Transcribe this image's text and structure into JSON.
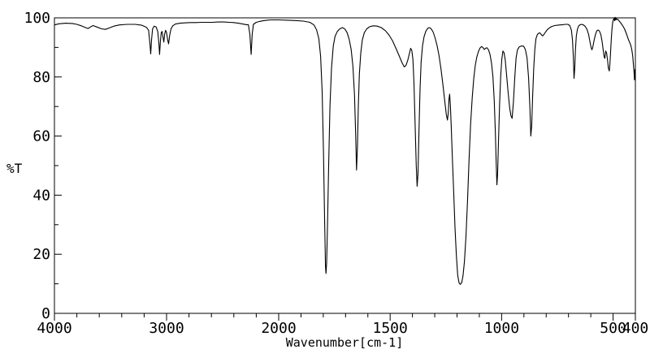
{
  "chart_data": {
    "type": "line",
    "title": "",
    "xlabel": "Wavenumber[cm-1]",
    "ylabel": "%T",
    "line_color": "#000000",
    "background_color": "#ffffff",
    "grid": "off",
    "x_axis": {
      "reversed": true,
      "max": 4000,
      "break": 2000,
      "min": 400,
      "major_ticks": [
        4000,
        3000,
        2000,
        1500,
        1000,
        500,
        400
      ],
      "minor_step_above_break": 200,
      "minor_step_below_break": 100
    },
    "y_axis": {
      "min": 0,
      "max": 100,
      "major_ticks": [
        0,
        20,
        40,
        60,
        80,
        100
      ],
      "minor_step": 10
    },
    "points": [
      [
        4000,
        97.6
      ],
      [
        3960,
        98.0
      ],
      [
        3900,
        98.2
      ],
      [
        3840,
        98.1
      ],
      [
        3800,
        97.8
      ],
      [
        3760,
        97.3
      ],
      [
        3730,
        96.8
      ],
      [
        3700,
        96.4
      ],
      [
        3680,
        96.9
      ],
      [
        3655,
        97.4
      ],
      [
        3620,
        96.9
      ],
      [
        3580,
        96.3
      ],
      [
        3545,
        96.1
      ],
      [
        3510,
        96.6
      ],
      [
        3470,
        97.2
      ],
      [
        3420,
        97.6
      ],
      [
        3350,
        97.8
      ],
      [
        3280,
        97.8
      ],
      [
        3220,
        97.5
      ],
      [
        3180,
        96.8
      ],
      [
        3160,
        95.8
      ],
      [
        3148,
        91.0
      ],
      [
        3141,
        87.8
      ],
      [
        3134,
        92.5
      ],
      [
        3125,
        96.3
      ],
      [
        3110,
        97.2
      ],
      [
        3093,
        96.9
      ],
      [
        3078,
        95.3
      ],
      [
        3069,
        91.5
      ],
      [
        3062,
        87.6
      ],
      [
        3055,
        92.0
      ],
      [
        3047,
        95.0
      ],
      [
        3040,
        95.4
      ],
      [
        3032,
        93.5
      ],
      [
        3025,
        91.8
      ],
      [
        3017,
        94.5
      ],
      [
        3009,
        95.8
      ],
      [
        3000,
        95.0
      ],
      [
        2990,
        92.5
      ],
      [
        2982,
        91.2
      ],
      [
        2972,
        94.2
      ],
      [
        2960,
        96.3
      ],
      [
        2945,
        97.3
      ],
      [
        2920,
        97.9
      ],
      [
        2880,
        98.2
      ],
      [
        2840,
        98.3
      ],
      [
        2790,
        98.4
      ],
      [
        2740,
        98.4
      ],
      [
        2690,
        98.5
      ],
      [
        2640,
        98.5
      ],
      [
        2590,
        98.5
      ],
      [
        2540,
        98.6
      ],
      [
        2490,
        98.6
      ],
      [
        2440,
        98.5
      ],
      [
        2400,
        98.4
      ],
      [
        2360,
        98.2
      ],
      [
        2320,
        97.9
      ],
      [
        2290,
        97.7
      ],
      [
        2270,
        97.7
      ],
      [
        2257,
        94.5
      ],
      [
        2246,
        87.6
      ],
      [
        2236,
        94.5
      ],
      [
        2225,
        97.8
      ],
      [
        2200,
        98.5
      ],
      [
        2170,
        98.8
      ],
      [
        2140,
        99.0
      ],
      [
        2105,
        99.2
      ],
      [
        2070,
        99.3
      ],
      [
        2030,
        99.3
      ],
      [
        2000,
        99.3
      ],
      [
        1960,
        99.2
      ],
      [
        1925,
        99.1
      ],
      [
        1890,
        98.9
      ],
      [
        1860,
        98.5
      ],
      [
        1842,
        97.6
      ],
      [
        1830,
        96.0
      ],
      [
        1820,
        93.0
      ],
      [
        1812,
        87.0
      ],
      [
        1805,
        75.0
      ],
      [
        1799,
        55.0
      ],
      [
        1794,
        32.0
      ],
      [
        1790,
        16.0
      ],
      [
        1788,
        13.5
      ],
      [
        1785,
        17.0
      ],
      [
        1781,
        30.0
      ],
      [
        1776,
        50.0
      ],
      [
        1770,
        70.0
      ],
      [
        1763,
        83.0
      ],
      [
        1755,
        90.5
      ],
      [
        1747,
        93.8
      ],
      [
        1737,
        95.4
      ],
      [
        1726,
        96.3
      ],
      [
        1714,
        96.7
      ],
      [
        1703,
        96.2
      ],
      [
        1693,
        95.0
      ],
      [
        1684,
        92.8
      ],
      [
        1675,
        89.3
      ],
      [
        1667,
        83.5
      ],
      [
        1660,
        74.0
      ],
      [
        1655,
        61.0
      ],
      [
        1651,
        48.5
      ],
      [
        1647,
        56.0
      ],
      [
        1643,
        70.0
      ],
      [
        1638,
        81.0
      ],
      [
        1632,
        88.0
      ],
      [
        1625,
        92.5
      ],
      [
        1616,
        95.0
      ],
      [
        1605,
        96.3
      ],
      [
        1592,
        97.0
      ],
      [
        1576,
        97.3
      ],
      [
        1558,
        97.2
      ],
      [
        1540,
        96.7
      ],
      [
        1522,
        95.7
      ],
      [
        1505,
        94.2
      ],
      [
        1489,
        92.2
      ],
      [
        1474,
        89.7
      ],
      [
        1459,
        87.1
      ],
      [
        1447,
        84.9
      ],
      [
        1437,
        83.4
      ],
      [
        1429,
        83.9
      ],
      [
        1421,
        85.7
      ],
      [
        1413,
        88.2
      ],
      [
        1408,
        89.7
      ],
      [
        1403,
        89.0
      ],
      [
        1398,
        86.0
      ],
      [
        1393,
        78.0
      ],
      [
        1388,
        64.0
      ],
      [
        1383,
        50.0
      ],
      [
        1379,
        43.0
      ],
      [
        1375,
        47.5
      ],
      [
        1371,
        61.0
      ],
      [
        1366,
        76.0
      ],
      [
        1361,
        85.0
      ],
      [
        1355,
        90.5
      ],
      [
        1348,
        93.6
      ],
      [
        1340,
        95.5
      ],
      [
        1331,
        96.5
      ],
      [
        1323,
        96.7
      ],
      [
        1315,
        96.2
      ],
      [
        1307,
        95.2
      ],
      [
        1299,
        93.4
      ],
      [
        1290,
        90.8
      ],
      [
        1281,
        87.3
      ],
      [
        1272,
        82.8
      ],
      [
        1263,
        77.2
      ],
      [
        1255,
        71.8
      ],
      [
        1248,
        67.3
      ],
      [
        1243,
        65.4
      ],
      [
        1239,
        68.0
      ],
      [
        1236,
        72.5
      ],
      [
        1233,
        74.2
      ],
      [
        1230,
        70.5
      ],
      [
        1226,
        63.0
      ],
      [
        1221,
        53.0
      ],
      [
        1215,
        41.0
      ],
      [
        1209,
        29.0
      ],
      [
        1203,
        19.5
      ],
      [
        1197,
        13.0
      ],
      [
        1191,
        10.3
      ],
      [
        1185,
        9.8
      ],
      [
        1179,
        10.4
      ],
      [
        1173,
        12.8
      ],
      [
        1167,
        17.5
      ],
      [
        1160,
        26.0
      ],
      [
        1153,
        38.0
      ],
      [
        1146,
        52.0
      ],
      [
        1139,
        64.0
      ],
      [
        1132,
        73.0
      ],
      [
        1125,
        79.5
      ],
      [
        1118,
        84.0
      ],
      [
        1111,
        86.8
      ],
      [
        1104,
        88.6
      ],
      [
        1097,
        89.8
      ],
      [
        1090,
        90.3
      ],
      [
        1084,
        90.0
      ],
      [
        1078,
        89.3
      ],
      [
        1072,
        89.7
      ],
      [
        1066,
        89.9
      ],
      [
        1059,
        89.2
      ],
      [
        1052,
        87.6
      ],
      [
        1045,
        84.6
      ],
      [
        1039,
        80.0
      ],
      [
        1033,
        72.0
      ],
      [
        1028,
        61.0
      ],
      [
        1024,
        50.0
      ],
      [
        1021,
        43.5
      ],
      [
        1018,
        47.0
      ],
      [
        1014,
        58.0
      ],
      [
        1009,
        71.0
      ],
      [
        1004,
        80.5
      ],
      [
        999,
        86.0
      ],
      [
        994,
        88.8
      ],
      [
        989,
        88.2
      ],
      [
        984,
        85.8
      ],
      [
        978,
        81.0
      ],
      [
        971,
        75.0
      ],
      [
        964,
        69.5
      ],
      [
        958,
        66.8
      ],
      [
        953,
        66.0
      ],
      [
        947,
        71.5
      ],
      [
        941,
        80.0
      ],
      [
        935,
        86.5
      ],
      [
        929,
        89.2
      ],
      [
        921,
        90.2
      ],
      [
        911,
        90.5
      ],
      [
        901,
        90.4
      ],
      [
        893,
        89.2
      ],
      [
        886,
        86.4
      ],
      [
        879,
        79.5
      ],
      [
        873,
        69.5
      ],
      [
        869,
        60.0
      ],
      [
        865,
        63.5
      ],
      [
        861,
        73.0
      ],
      [
        856,
        83.0
      ],
      [
        851,
        89.5
      ],
      [
        846,
        92.9
      ],
      [
        840,
        94.3
      ],
      [
        834,
        94.8
      ],
      [
        828,
        94.9
      ],
      [
        822,
        94.3
      ],
      [
        816,
        93.9
      ],
      [
        810,
        94.4
      ],
      [
        803,
        95.2
      ],
      [
        795,
        96.0
      ],
      [
        786,
        96.6
      ],
      [
        775,
        97.1
      ],
      [
        762,
        97.4
      ],
      [
        750,
        97.5
      ],
      [
        738,
        97.6
      ],
      [
        726,
        97.7
      ],
      [
        714,
        97.8
      ],
      [
        703,
        97.8
      ],
      [
        694,
        97.4
      ],
      [
        687,
        95.8
      ],
      [
        682,
        92.5
      ],
      [
        678,
        86.5
      ],
      [
        675,
        79.5
      ],
      [
        672,
        83.0
      ],
      [
        669,
        89.0
      ],
      [
        665,
        93.8
      ],
      [
        660,
        96.2
      ],
      [
        654,
        97.3
      ],
      [
        648,
        97.7
      ],
      [
        641,
        97.8
      ],
      [
        633,
        97.6
      ],
      [
        625,
        97.1
      ],
      [
        617,
        96.1
      ],
      [
        610,
        94.4
      ],
      [
        604,
        92.1
      ],
      [
        599,
        90.1
      ],
      [
        595,
        89.2
      ],
      [
        591,
        90.1
      ],
      [
        585,
        92.4
      ],
      [
        579,
        94.4
      ],
      [
        573,
        95.6
      ],
      [
        567,
        95.9
      ],
      [
        561,
        95.5
      ],
      [
        555,
        94.3
      ],
      [
        549,
        91.9
      ],
      [
        544,
        88.9
      ],
      [
        540,
        86.8
      ],
      [
        537,
        86.3
      ],
      [
        533,
        88.8
      ],
      [
        529,
        88.1
      ],
      [
        525,
        85.8
      ],
      [
        521,
        83.0
      ],
      [
        517,
        82.0
      ],
      [
        514,
        84.5
      ],
      [
        511,
        88.5
      ],
      [
        508,
        93.0
      ],
      [
        505,
        96.2
      ],
      [
        502,
        98.3
      ],
      [
        499,
        99.3
      ],
      [
        496,
        99.8
      ],
      [
        493,
        99.0
      ],
      [
        491,
        100.2
      ],
      [
        489,
        99.3
      ],
      [
        487,
        99.9
      ],
      [
        484,
        99.4
      ],
      [
        481,
        99.6
      ],
      [
        477,
        99.3
      ],
      [
        472,
        98.9
      ],
      [
        467,
        98.4
      ],
      [
        461,
        97.8
      ],
      [
        455,
        97.1
      ],
      [
        449,
        96.3
      ],
      [
        443,
        95.2
      ],
      [
        437,
        94.0
      ],
      [
        431,
        92.6
      ],
      [
        425,
        91.6
      ],
      [
        420,
        90.6
      ],
      [
        416,
        89.2
      ],
      [
        412,
        87.2
      ],
      [
        409,
        84.5
      ],
      [
        406,
        81.5
      ],
      [
        404,
        79.0
      ],
      [
        402,
        82.5
      ],
      [
        400,
        81.0
      ]
    ]
  }
}
